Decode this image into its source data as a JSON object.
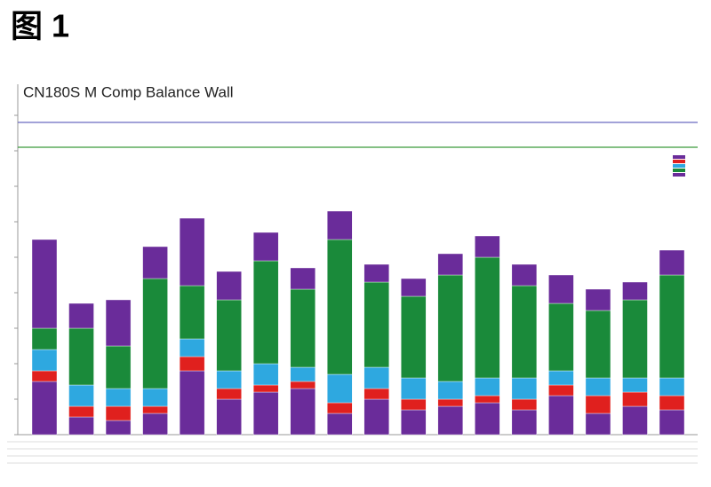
{
  "figure_label": "图 1",
  "chart_data": {
    "type": "stacked-bar",
    "title": "CN180S M Comp Balance Wall",
    "ylim": [
      0,
      10
    ],
    "yticks": [
      0,
      1,
      2,
      3,
      4,
      5,
      6,
      7,
      8,
      9
    ],
    "reference_lines": [
      {
        "value": 8.8,
        "color": "#6b6bc0"
      },
      {
        "value": 8.1,
        "color": "#3a9a3a"
      }
    ],
    "series": [
      {
        "color": "#6a2c9a",
        "values": [
          1.5,
          0.5,
          0.4,
          0.6,
          1.8,
          1.0,
          1.2,
          1.3,
          0.6,
          1.0,
          0.7,
          0.8,
          0.9,
          0.7,
          1.1,
          0.6,
          0.8,
          0.7
        ]
      },
      {
        "color": "#e0201e",
        "values": [
          0.3,
          0.3,
          0.4,
          0.2,
          0.4,
          0.3,
          0.2,
          0.2,
          0.3,
          0.3,
          0.3,
          0.2,
          0.2,
          0.3,
          0.3,
          0.5,
          0.4,
          0.4
        ]
      },
      {
        "color": "#2ea8e0",
        "values": [
          0.6,
          0.6,
          0.5,
          0.5,
          0.5,
          0.5,
          0.6,
          0.4,
          0.8,
          0.6,
          0.6,
          0.5,
          0.5,
          0.6,
          0.4,
          0.5,
          0.4,
          0.5
        ]
      },
      {
        "color": "#1a8a3a",
        "values": [
          0.6,
          1.6,
          1.2,
          3.1,
          1.5,
          2.0,
          2.9,
          2.2,
          3.8,
          2.4,
          2.3,
          3.0,
          3.4,
          2.6,
          1.9,
          1.9,
          2.2,
          2.9
        ]
      },
      {
        "color": "#6a2c9a",
        "values": [
          2.5,
          0.7,
          1.3,
          0.9,
          1.9,
          0.8,
          0.8,
          0.6,
          0.8,
          0.5,
          0.5,
          0.6,
          0.6,
          0.6,
          0.8,
          0.6,
          0.5,
          0.7
        ]
      }
    ]
  }
}
